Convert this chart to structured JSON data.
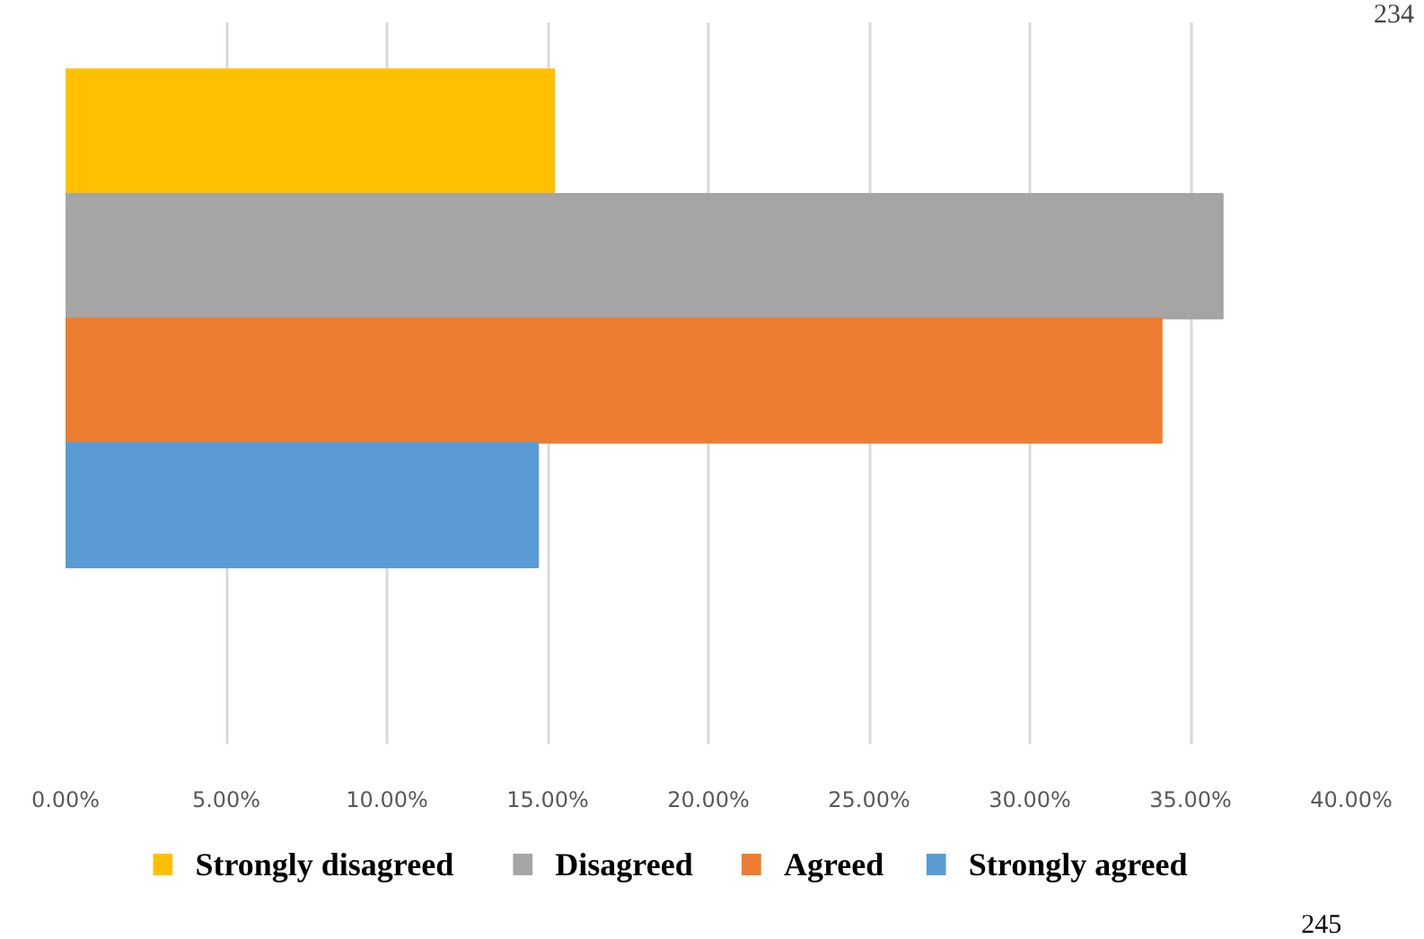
{
  "chart_data": {
    "type": "bar",
    "orientation": "horizontal",
    "categories": [
      null
    ],
    "series": [
      {
        "name": "Strongly disagreed",
        "color": "#ffc000",
        "values": [
          15.2
        ]
      },
      {
        "name": "Disagreed",
        "color": "#a5a5a5",
        "values": [
          36.0
        ]
      },
      {
        "name": "Agreed",
        "color": "#ed7d31",
        "values": [
          34.1
        ]
      },
      {
        "name": "Strongly agreed",
        "color": "#5b9bd5",
        "values": [
          14.7
        ]
      }
    ],
    "xlim": [
      0,
      40
    ],
    "xticks": [
      {
        "value": 0,
        "label": "0.00%"
      },
      {
        "value": 5,
        "label": "5.00%"
      },
      {
        "value": 10,
        "label": "10.00%"
      },
      {
        "value": 15,
        "label": "15.00%"
      },
      {
        "value": 20,
        "label": "20.00%"
      },
      {
        "value": 25,
        "label": "25.00%"
      },
      {
        "value": 30,
        "label": "30.00%"
      },
      {
        "value": 35,
        "label": "35.00%"
      },
      {
        "value": 40,
        "label": "40.00%"
      }
    ],
    "tick_labels": "x",
    "grid": "x",
    "legend": "bottom",
    "annotations": [
      "234",
      "245"
    ]
  }
}
